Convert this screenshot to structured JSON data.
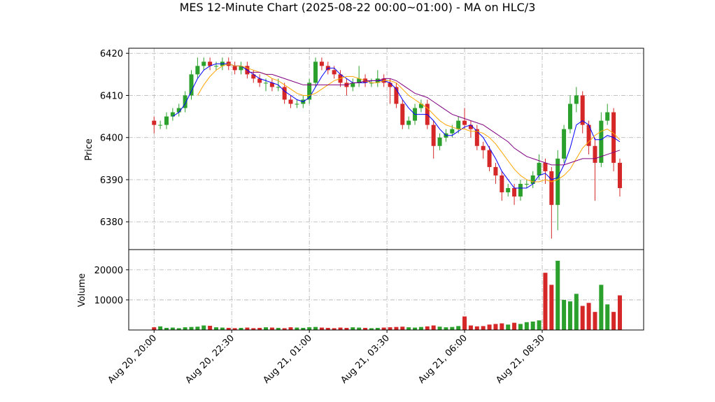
{
  "chart_data": {
    "type": "candlestick",
    "title": "MES 12-Minute Chart (2025-08-22 00:00~01:00) - MA on HLC/3",
    "ylabel": "Price",
    "grid": true,
    "up_color": "#2ca02c",
    "down_color": "#d62728",
    "xlim": [
      "Aug 20, 19:11",
      "Aug 21, 11:46"
    ],
    "xticks": [
      "Aug 20, 20:00",
      "Aug 20, 22:30",
      "Aug 21, 01:00",
      "Aug 21, 03:30",
      "Aug 21, 06:00",
      "Aug 21, 08:30"
    ],
    "ylim": [
      6373.4,
      6421.2
    ],
    "yticks": [
      6380,
      6390,
      6400,
      6410,
      6420
    ],
    "x": [
      "Aug 20, 20:00",
      "Aug 20, 20:12",
      "Aug 20, 20:24",
      "Aug 20, 20:36",
      "Aug 20, 20:48",
      "Aug 20, 21:00",
      "Aug 20, 21:12",
      "Aug 20, 21:24",
      "Aug 20, 21:36",
      "Aug 20, 21:48",
      "Aug 20, 22:00",
      "Aug 20, 22:12",
      "Aug 20, 22:24",
      "Aug 20, 22:36",
      "Aug 20, 22:48",
      "Aug 20, 23:00",
      "Aug 20, 23:12",
      "Aug 20, 23:24",
      "Aug 20, 23:36",
      "Aug 20, 23:48",
      "Aug 21, 00:00",
      "Aug 21, 00:12",
      "Aug 21, 00:24",
      "Aug 21, 00:36",
      "Aug 21, 00:48",
      "Aug 21, 01:00",
      "Aug 21, 01:12",
      "Aug 21, 01:24",
      "Aug 21, 01:36",
      "Aug 21, 01:48",
      "Aug 21, 02:00",
      "Aug 21, 02:12",
      "Aug 21, 02:24",
      "Aug 21, 02:36",
      "Aug 21, 02:48",
      "Aug 21, 03:00",
      "Aug 21, 03:12",
      "Aug 21, 03:24",
      "Aug 21, 03:36",
      "Aug 21, 03:48",
      "Aug 21, 04:00",
      "Aug 21, 04:12",
      "Aug 21, 04:24",
      "Aug 21, 04:36",
      "Aug 21, 04:48",
      "Aug 21, 05:00",
      "Aug 21, 05:12",
      "Aug 21, 05:24",
      "Aug 21, 05:36",
      "Aug 21, 05:48",
      "Aug 21, 06:00",
      "Aug 21, 06:12",
      "Aug 21, 06:24",
      "Aug 21, 06:36",
      "Aug 21, 06:48",
      "Aug 21, 07:00",
      "Aug 21, 07:12",
      "Aug 21, 07:24",
      "Aug 21, 07:36",
      "Aug 21, 07:48",
      "Aug 21, 08:00",
      "Aug 21, 08:12",
      "Aug 21, 08:24",
      "Aug 21, 08:36",
      "Aug 21, 08:48",
      "Aug 21, 09:00",
      "Aug 21, 09:12",
      "Aug 21, 09:24",
      "Aug 21, 09:36",
      "Aug 21, 09:48",
      "Aug 21, 10:00",
      "Aug 21, 10:12",
      "Aug 21, 10:24",
      "Aug 21, 10:36",
      "Aug 21, 10:48",
      "Aug 21, 11:00"
    ],
    "open": [
      6404,
      6403,
      6403,
      6405,
      6406,
      6407,
      6410,
      6415,
      6417,
      6418,
      6417,
      6417,
      6418,
      6417,
      6416,
      6417,
      6415,
      6414,
      6413,
      6413,
      6412,
      6412,
      6409,
      6408,
      6408,
      6409,
      6413,
      6418,
      6417,
      6416,
      6415,
      6413,
      6412,
      6413,
      6414,
      6413,
      6413,
      6414,
      6413,
      6412,
      6408,
      6403,
      6404,
      6407,
      6408,
      6403,
      6398,
      6400,
      6401,
      6402,
      6404,
      6403,
      6402,
      6398,
      6397,
      6393,
      6391,
      6387,
      6388,
      6386,
      6389,
      6389,
      6391,
      6394,
      6392,
      6384,
      6395,
      6402,
      6408,
      6410,
      6403,
      6398,
      6394,
      6404,
      6406,
      6394
    ],
    "high": [
      6405,
      6404,
      6406,
      6407,
      6408,
      6411,
      6416,
      6419,
      6419,
      6419,
      6418,
      6419,
      6419,
      6418,
      6418,
      6418,
      6416,
      6415,
      6414,
      6414,
      6414,
      6413,
      6410,
      6409,
      6410,
      6414,
      6419,
      6419,
      6418,
      6417,
      6416,
      6414,
      6414,
      6417,
      6415,
      6414,
      6416,
      6415,
      6414,
      6413,
      6409,
      6405,
      6408,
      6409,
      6409,
      6404,
      6401,
      6402,
      6403,
      6405,
      6407,
      6404,
      6403,
      6399,
      6398,
      6394,
      6392,
      6389,
      6389,
      6390,
      6390,
      6392,
      6396,
      6395,
      6393,
      6397,
      6403,
      6410,
      6412,
      6411,
      6404,
      6400,
      6406,
      6408,
      6407,
      6395
    ],
    "low": [
      6401,
      6402,
      6402,
      6404,
      6405,
      6406,
      6409,
      6414,
      6416,
      6416,
      6416,
      6416,
      6416,
      6415,
      6415,
      6414,
      6413,
      6412,
      6411,
      6411,
      6411,
      6408,
      6407,
      6407,
      6407,
      6408,
      6412,
      6416,
      6415,
      6414,
      6412,
      6410,
      6411,
      6412,
      6412,
      6412,
      6412,
      6412,
      6408,
      6407,
      6402,
      6402,
      6403,
      6406,
      6402,
      6395,
      6397,
      6399,
      6400,
      6401,
      6402,
      6400,
      6397,
      6395,
      6392,
      6389,
      6385,
      6386,
      6384,
      6385,
      6388,
      6388,
      6390,
      6389,
      6376,
      6378,
      6394,
      6401,
      6406,
      6401,
      6396,
      6385,
      6393,
      6403,
      6392,
      6386
    ],
    "close": [
      6403,
      6403,
      6405,
      6406,
      6407,
      6410,
      6415,
      6417,
      6418,
      6417,
      6417,
      6418,
      6417,
      6416,
      6417,
      6415,
      6414,
      6413,
      6413,
      6412,
      6412,
      6409,
      6408,
      6408,
      6409,
      6413,
      6418,
      6417,
      6416,
      6415,
      6413,
      6412,
      6413,
      6414,
      6413,
      6413,
      6414,
      6413,
      6412,
      6408,
      6403,
      6404,
      6407,
      6408,
      6403,
      6398,
      6400,
      6401,
      6402,
      6404,
      6403,
      6402,
      6398,
      6397,
      6393,
      6391,
      6387,
      6388,
      6386,
      6389,
      6389,
      6391,
      6394,
      6392,
      6384,
      6395,
      6402,
      6408,
      6410,
      6403,
      6398,
      6394,
      6404,
      6406,
      6394,
      6388
    ],
    "series": [
      {
        "color": "#0000ff",
        "values": [
          null,
          null,
          null,
          6405,
          6406,
          6408,
          6411,
          6414,
          6416,
          6417,
          6417.5,
          6417.5,
          6417.5,
          6417,
          6417,
          6416,
          6415,
          6414,
          6413.5,
          6413,
          6412.5,
          6411,
          6410,
          6409,
          6408.5,
          6409.5,
          6412,
          6414.5,
          6416.5,
          6416.5,
          6415,
          6414,
          6413,
          6413,
          6413,
          6413.5,
          6413.5,
          6413.5,
          6413,
          6411.5,
          6409,
          6407,
          6405.5,
          6405.5,
          6405.5,
          6404,
          6402,
          6400.5,
          6400.5,
          6401.5,
          6402.5,
          6403,
          6401.5,
          6400,
          6397.5,
          6395,
          6392,
          6390,
          6388,
          6388,
          6388,
          6389,
          6391,
          6391.5,
          6390,
          6390.5,
          6393.5,
          6397.5,
          6403,
          6404,
          6403,
          6399.5,
          6399.5,
          6400.5,
          6400,
          6399
        ]
      },
      {
        "color": "#ffa500",
        "values": [
          null,
          null,
          null,
          null,
          null,
          null,
          null,
          6410,
          6412.5,
          6414.5,
          6416,
          6417,
          6417.5,
          6417,
          6417,
          6416.5,
          6416,
          6415.5,
          6415,
          6414,
          6413.5,
          6412.5,
          6411.5,
          6410.5,
          6410,
          6410,
          6410.5,
          6411.5,
          6412.5,
          6413.5,
          6414,
          6414.5,
          6414.5,
          6414,
          6413.5,
          6413,
          6413,
          6413.5,
          6413.5,
          6413,
          6411.5,
          6410,
          6409,
          6408,
          6407,
          6405.5,
          6404,
          6403,
          6402.5,
          6402,
          6402,
          6401.5,
          6401.5,
          6401,
          6400,
          6398.5,
          6396.5,
          6394.5,
          6392.5,
          6391,
          6390,
          6389.5,
          6389.5,
          6390,
          6389.5,
          6390,
          6391,
          6392.5,
          6395,
          6397.5,
          6399,
          6400.5,
          6401.5,
          6402,
          6401,
          6399.5
        ]
      },
      {
        "color": "#800080",
        "values": [
          null,
          null,
          null,
          null,
          null,
          null,
          null,
          null,
          null,
          null,
          null,
          null,
          null,
          null,
          null,
          6415.5,
          6415.5,
          6415.5,
          6415,
          6415,
          6414.5,
          6414,
          6413.5,
          6413,
          6412.5,
          6412.5,
          6412.5,
          6412.5,
          6412.5,
          6412.5,
          6412.5,
          6412.5,
          6413,
          6413,
          6413.5,
          6413.5,
          6413.5,
          6414,
          6414,
          6413.5,
          6412.5,
          6411.5,
          6410.5,
          6410,
          6409.5,
          6408.5,
          6407.5,
          6406.5,
          6405.5,
          6405,
          6404.5,
          6404,
          6403.5,
          6403,
          6402,
          6401,
          6400,
          6399,
          6397.5,
          6396.5,
          6395.5,
          6395,
          6394.5,
          6394,
          6393.5,
          6393.5,
          6393.5,
          6394,
          6394.5,
          6395,
          6395,
          6395,
          6395.5,
          6396,
          6396.5,
          6397
        ]
      }
    ],
    "volume": {
      "ylabel": "Volume",
      "ylim": [
        0,
        26700
      ],
      "yticks": [
        10000,
        20000
      ],
      "values": [
        900,
        1200,
        700,
        800,
        600,
        900,
        1000,
        1100,
        1500,
        1400,
        900,
        800,
        700,
        600,
        700,
        800,
        600,
        700,
        900,
        800,
        700,
        600,
        900,
        800,
        700,
        900,
        1000,
        800,
        700,
        600,
        800,
        700,
        900,
        800,
        700,
        600,
        700,
        800,
        900,
        1000,
        1100,
        900,
        800,
        1000,
        1200,
        1500,
        1100,
        900,
        1000,
        1300,
        4500,
        1500,
        1200,
        1300,
        1800,
        2000,
        2200,
        1800,
        2400,
        2000,
        2600,
        2800,
        3200,
        19000,
        15000,
        23000,
        10000,
        9500,
        12000,
        8000,
        9000,
        6000,
        15000,
        8500,
        6000,
        11500
      ]
    }
  }
}
